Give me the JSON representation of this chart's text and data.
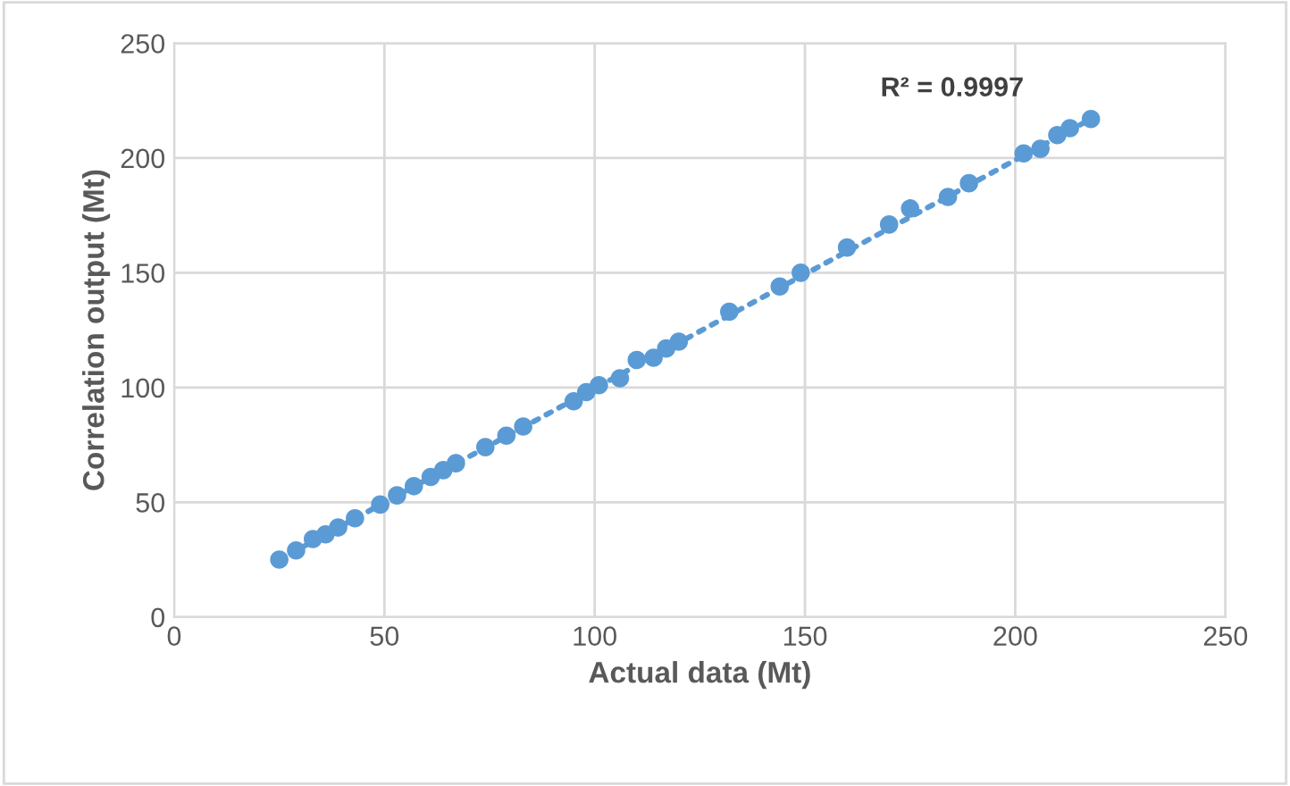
{
  "chart_data": {
    "type": "scatter",
    "xlabel": "Actual data (Mt)",
    "ylabel": "Correlation output (Mt)",
    "xlim": [
      0,
      250
    ],
    "ylim": [
      0,
      250
    ],
    "xticks": [
      0,
      50,
      100,
      150,
      200,
      250
    ],
    "yticks": [
      0,
      50,
      100,
      150,
      200,
      250
    ],
    "grid": true,
    "series": [
      {
        "color": "#5b9bd5",
        "marker": "circle",
        "x": [
          25,
          29,
          33,
          36,
          39,
          43,
          49,
          53,
          57,
          61,
          64,
          67,
          74,
          79,
          83,
          95,
          98,
          101,
          106,
          110,
          114,
          117,
          120,
          132,
          144,
          149,
          160,
          170,
          175,
          184,
          189,
          202,
          206,
          210,
          213,
          218
        ],
        "values": [
          25,
          29,
          34,
          36,
          39,
          43,
          49,
          53,
          57,
          61,
          64,
          67,
          74,
          79,
          83,
          94,
          98,
          101,
          104,
          112,
          113,
          117,
          120,
          133,
          144,
          150,
          161,
          171,
          178,
          183,
          189,
          202,
          204,
          210,
          213,
          217
        ]
      },
      {
        "type": "line",
        "color": "#5b9bd5",
        "line_style": "dotted",
        "x": [
          25,
          218
        ],
        "values": [
          25,
          217
        ]
      }
    ],
    "annotations": [
      "R² = 0.9997"
    ]
  }
}
